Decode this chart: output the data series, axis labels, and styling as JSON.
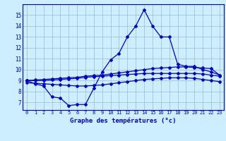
{
  "xlabel": "Graphe des températures (°c)",
  "x_ticks": [
    0,
    1,
    2,
    3,
    4,
    5,
    6,
    7,
    8,
    9,
    10,
    11,
    12,
    13,
    14,
    15,
    16,
    17,
    18,
    19,
    20,
    21,
    22,
    23
  ],
  "y_ticks": [
    7,
    8,
    9,
    10,
    11,
    12,
    13,
    14,
    15
  ],
  "ylim": [
    6.3,
    16.0
  ],
  "xlim": [
    -0.5,
    23.5
  ],
  "bg_color": "#cceeff",
  "line_color": "#0000cc",
  "main_temp": [
    9.0,
    8.7,
    8.5,
    7.5,
    7.4,
    6.7,
    6.8,
    6.8,
    8.3,
    9.8,
    10.9,
    11.5,
    13.0,
    14.0,
    15.5,
    14.0,
    13.0,
    13.0,
    10.5,
    10.3,
    10.3,
    10.0,
    9.8,
    9.5
  ],
  "line2": [
    9.0,
    9.05,
    9.1,
    9.15,
    9.2,
    9.25,
    9.3,
    9.4,
    9.45,
    9.5,
    9.6,
    9.7,
    9.8,
    9.9,
    10.0,
    10.1,
    10.15,
    10.2,
    10.25,
    10.25,
    10.2,
    10.15,
    10.1,
    9.5
  ],
  "line3": [
    9.0,
    9.0,
    9.0,
    9.05,
    9.1,
    9.15,
    9.2,
    9.3,
    9.35,
    9.4,
    9.45,
    9.5,
    9.55,
    9.6,
    9.65,
    9.65,
    9.65,
    9.65,
    9.65,
    9.65,
    9.65,
    9.6,
    9.5,
    9.4
  ],
  "line4": [
    8.8,
    8.75,
    8.7,
    8.65,
    8.6,
    8.55,
    8.5,
    8.5,
    8.55,
    8.6,
    8.7,
    8.8,
    8.9,
    9.0,
    9.1,
    9.15,
    9.2,
    9.25,
    9.25,
    9.25,
    9.2,
    9.1,
    9.0,
    8.9
  ]
}
